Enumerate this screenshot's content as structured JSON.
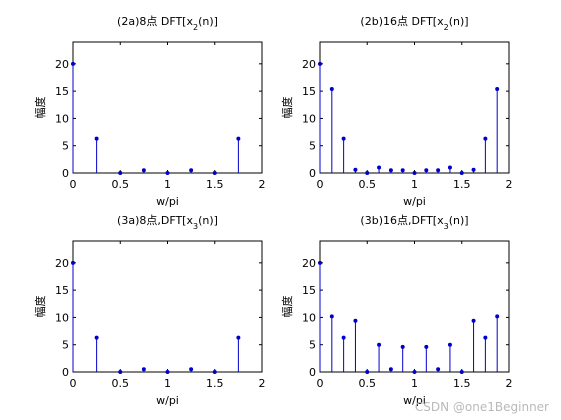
{
  "chart_data": [
    {
      "type": "stem",
      "title_main": "(2a)8点 DFT[x",
      "title_sub": "2",
      "title_end": "(n)]",
      "xlabel": "w/pi",
      "ylabel": "幅度",
      "xlim": [
        0,
        2
      ],
      "ylim": [
        0,
        24
      ],
      "xticks": [
        0,
        0.5,
        1,
        1.5,
        2
      ],
      "yticks": [
        0,
        5,
        10,
        15,
        20
      ],
      "xtick_labels": [
        "0",
        "0.5",
        "1",
        "1.5",
        "2"
      ],
      "ytick_labels": [
        "0",
        "5",
        "10",
        "15",
        "20"
      ],
      "x": [
        0,
        0.25,
        0.5,
        0.75,
        1.0,
        1.25,
        1.5,
        1.75
      ],
      "values": [
        20,
        6.3,
        0,
        0.5,
        0,
        0.5,
        0,
        6.3
      ]
    },
    {
      "type": "stem",
      "title_main": "(2b)16点 DFT[x",
      "title_sub": "2",
      "title_end": "(n)]",
      "xlabel": "w/pi",
      "ylabel": "幅度",
      "xlim": [
        0,
        2
      ],
      "ylim": [
        0,
        24
      ],
      "xticks": [
        0,
        0.5,
        1,
        1.5,
        2
      ],
      "yticks": [
        0,
        5,
        10,
        15,
        20
      ],
      "xtick_labels": [
        "0",
        "0.5",
        "1",
        "1.5",
        "2"
      ],
      "ytick_labels": [
        "0",
        "5",
        "10",
        "15",
        "20"
      ],
      "x": [
        0,
        0.125,
        0.25,
        0.375,
        0.5,
        0.625,
        0.75,
        0.875,
        1.0,
        1.125,
        1.25,
        1.375,
        1.5,
        1.625,
        1.75,
        1.875
      ],
      "values": [
        20,
        15.4,
        6.3,
        0.6,
        0,
        1.0,
        0.5,
        0.5,
        0,
        0.5,
        0.5,
        1.0,
        0,
        0.6,
        6.3,
        15.4
      ]
    },
    {
      "type": "stem",
      "title_main": "(3a)8点,DFT[x",
      "title_sub": "3",
      "title_end": "(n)]",
      "xlabel": "w/pi",
      "ylabel": "幅度",
      "xlim": [
        0,
        2
      ],
      "ylim": [
        0,
        24
      ],
      "xticks": [
        0,
        0.5,
        1,
        1.5,
        2
      ],
      "yticks": [
        0,
        5,
        10,
        15,
        20
      ],
      "xtick_labels": [
        "0",
        "0.5",
        "1",
        "1.5",
        "2"
      ],
      "ytick_labels": [
        "0",
        "5",
        "10",
        "15",
        "20"
      ],
      "x": [
        0,
        0.25,
        0.5,
        0.75,
        1.0,
        1.25,
        1.5,
        1.75
      ],
      "values": [
        20,
        6.3,
        0,
        0.5,
        0,
        0.5,
        0,
        6.3
      ]
    },
    {
      "type": "stem",
      "title_main": "(3b)16点,DFT[x",
      "title_sub": "3",
      "title_end": "(n)]",
      "xlabel": "w/pi",
      "ylabel": "幅度",
      "xlim": [
        0,
        2
      ],
      "ylim": [
        0,
        24
      ],
      "xticks": [
        0,
        0.5,
        1,
        1.5,
        2
      ],
      "yticks": [
        0,
        5,
        10,
        15,
        20
      ],
      "xtick_labels": [
        "0",
        "0.5",
        "1",
        "1.5",
        "2"
      ],
      "ytick_labels": [
        "0",
        "5",
        "10",
        "15",
        "20"
      ],
      "x": [
        0,
        0.125,
        0.25,
        0.375,
        0.5,
        0.625,
        0.75,
        0.875,
        1.0,
        1.125,
        1.25,
        1.375,
        1.5,
        1.625,
        1.75,
        1.875
      ],
      "values": [
        20,
        10.2,
        6.3,
        9.4,
        0,
        5.0,
        0.5,
        4.6,
        0,
        4.6,
        0.5,
        5.0,
        0,
        9.4,
        6.3,
        10.2
      ]
    }
  ],
  "watermark": "CSDN @one1Beginner",
  "colors": {
    "stem": "#0000cc",
    "axis": "#000000",
    "background": "#ffffff"
  }
}
